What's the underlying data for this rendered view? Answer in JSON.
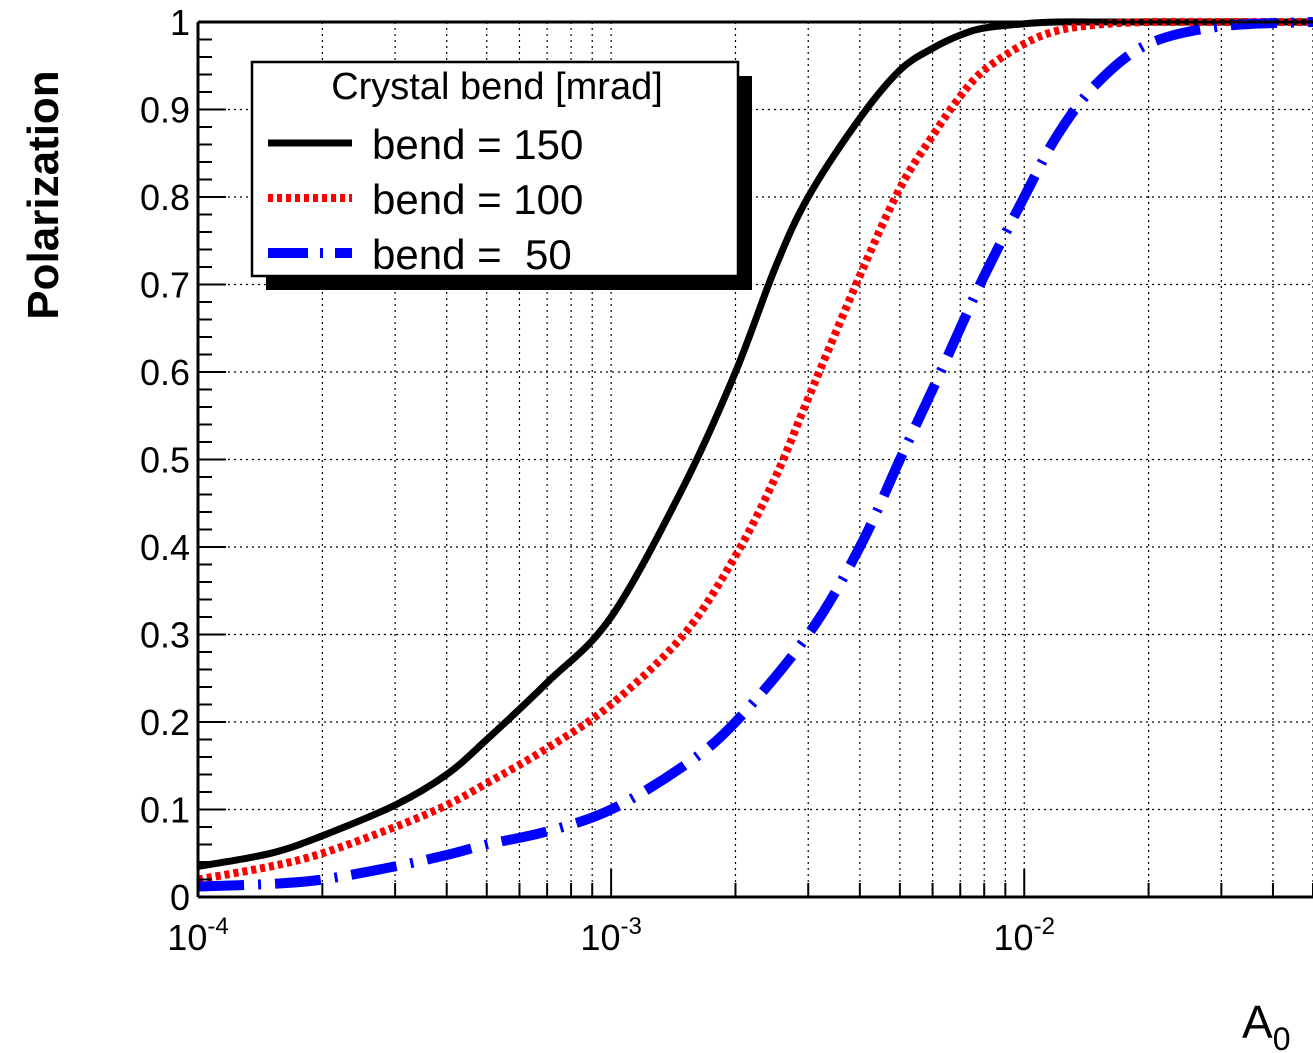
{
  "chart_data": {
    "type": "line",
    "xscale": "log",
    "xlim": [
      0.0001,
      0.05
    ],
    "ylim": [
      0,
      1
    ],
    "ylabel": "Polarization",
    "xlabel": "A",
    "xlabel_sub": "0",
    "grid": true,
    "legend": {
      "title": "Crystal bend [mrad]",
      "placement": "top-left",
      "entries": [
        "bend = 150",
        "bend = 100",
        "bend =  50"
      ]
    },
    "yticks": [
      "0",
      "0.1",
      "0.2",
      "0.3",
      "0.4",
      "0.5",
      "0.6",
      "0.7",
      "0.8",
      "0.9",
      "1"
    ],
    "xticks": [
      {
        "base": "10",
        "exp": "-4",
        "value": 0.0001
      },
      {
        "base": "10",
        "exp": "-3",
        "value": 0.001
      },
      {
        "base": "10",
        "exp": "-2",
        "value": 0.01
      }
    ],
    "series": [
      {
        "name": "bend = 150",
        "color": "#000000",
        "style": "solid",
        "x": [
          0.0001,
          0.00015,
          0.0002,
          0.0003,
          0.0004,
          0.0005,
          0.0007,
          0.001,
          0.0015,
          0.002,
          0.0025,
          0.003,
          0.004,
          0.005,
          0.006,
          0.007,
          0.008,
          0.01,
          0.012,
          0.015,
          0.02,
          0.03,
          0.05
        ],
        "y": [
          0.035,
          0.05,
          0.07,
          0.105,
          0.14,
          0.18,
          0.245,
          0.32,
          0.47,
          0.6,
          0.72,
          0.8,
          0.89,
          0.945,
          0.97,
          0.985,
          0.993,
          0.998,
          1.0,
          1.0,
          1.0,
          1.0,
          1.0
        ]
      },
      {
        "name": "bend = 100",
        "color": "#ff0000",
        "style": "dotted",
        "x": [
          0.0001,
          0.00015,
          0.0002,
          0.0003,
          0.0004,
          0.0005,
          0.0007,
          0.001,
          0.0015,
          0.002,
          0.0025,
          0.003,
          0.004,
          0.005,
          0.006,
          0.007,
          0.008,
          0.01,
          0.012,
          0.015,
          0.02,
          0.03,
          0.05
        ],
        "y": [
          0.02,
          0.035,
          0.05,
          0.08,
          0.105,
          0.13,
          0.17,
          0.22,
          0.3,
          0.39,
          0.48,
          0.57,
          0.71,
          0.81,
          0.87,
          0.915,
          0.945,
          0.975,
          0.99,
          0.997,
          1.0,
          1.0,
          1.0
        ]
      },
      {
        "name": "bend =  50",
        "color": "#0000ff",
        "style": "dashdot",
        "x": [
          0.0001,
          0.00015,
          0.0002,
          0.0003,
          0.0004,
          0.0005,
          0.0007,
          0.001,
          0.0015,
          0.002,
          0.003,
          0.004,
          0.005,
          0.006,
          0.007,
          0.008,
          0.01,
          0.012,
          0.015,
          0.02,
          0.03,
          0.05
        ],
        "y": [
          0.012,
          0.015,
          0.02,
          0.035,
          0.048,
          0.06,
          0.075,
          0.1,
          0.15,
          0.2,
          0.3,
          0.4,
          0.5,
          0.58,
          0.65,
          0.71,
          0.8,
          0.87,
          0.93,
          0.975,
          0.995,
          1.0
        ]
      }
    ]
  }
}
